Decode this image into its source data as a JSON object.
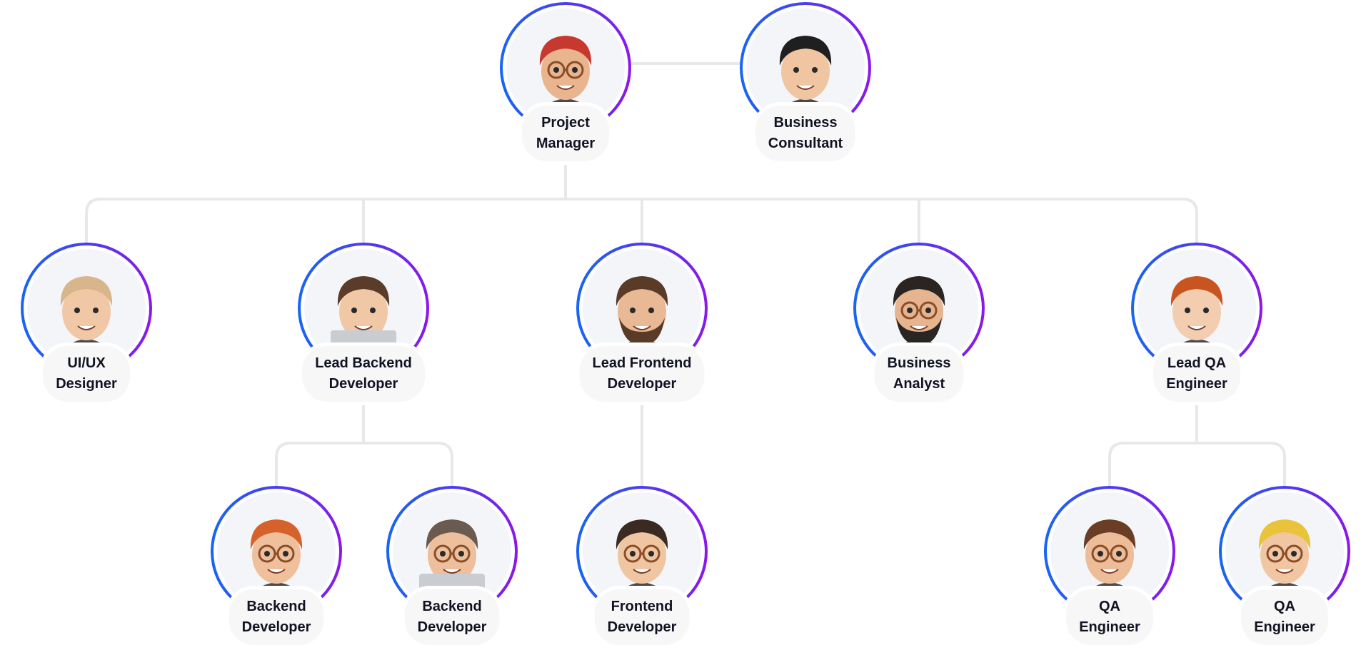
{
  "colors": {
    "ring_start": "#1766f4",
    "ring_end": "#8c17ea",
    "connector": "#e8e8ea",
    "node_fill": "#f3f5f8",
    "label_bg": "#f7f7f8"
  },
  "nodes": [
    {
      "id": "project-manager",
      "lines": [
        "Project",
        "Manager"
      ],
      "hair": "#c7392f",
      "skin": "#e9b58f",
      "glasses": true
    },
    {
      "id": "business-consultant",
      "lines": [
        "Business",
        "Consultant"
      ],
      "hair": "#1f1f1f",
      "skin": "#f0c6a2",
      "glasses": false
    },
    {
      "id": "ui-ux-designer",
      "lines": [
        "UI/UX",
        "Designer"
      ],
      "hair": "#d9b58c",
      "skin": "#f1c8a6",
      "glasses": false
    },
    {
      "id": "lead-backend-developer",
      "lines": [
        "Lead Backend",
        "Developer"
      ],
      "hair": "#5b3b2a",
      "skin": "#f1c8a6",
      "glasses": false,
      "laptop": true
    },
    {
      "id": "lead-frontend-developer",
      "lines": [
        "Lead Frontend",
        "Developer"
      ],
      "hair": "#5a3b28",
      "skin": "#e8b994",
      "glasses": false,
      "beard": true
    },
    {
      "id": "business-analyst",
      "lines": [
        "Business",
        "Analyst"
      ],
      "hair": "#2a2522",
      "skin": "#e6b48f",
      "glasses": true,
      "beard": true
    },
    {
      "id": "lead-qa-engineer",
      "lines": [
        "Lead QA",
        "Engineer"
      ],
      "hair": "#c8551f",
      "skin": "#f3cdb0",
      "glasses": false
    },
    {
      "id": "backend-developer-1",
      "lines": [
        "Backend",
        "Developer"
      ],
      "hair": "#d5622a",
      "skin": "#f0c09c",
      "glasses": true
    },
    {
      "id": "backend-developer-2",
      "lines": [
        "Backend",
        "Developer"
      ],
      "hair": "#6b5a4f",
      "skin": "#edbf9c",
      "glasses": true,
      "laptop": true
    },
    {
      "id": "frontend-developer",
      "lines": [
        "Frontend",
        "Developer"
      ],
      "hair": "#3a2a22",
      "skin": "#f0c6a2",
      "glasses": true
    },
    {
      "id": "qa-engineer-1",
      "lines": [
        "QA",
        "Engineer"
      ],
      "hair": "#6a3d25",
      "skin": "#ecbd98",
      "glasses": true
    },
    {
      "id": "qa-engineer-2",
      "lines": [
        "QA",
        "Engineer"
      ],
      "hair": "#e9c43a",
      "skin": "#f1c6a2",
      "glasses": true
    }
  ]
}
